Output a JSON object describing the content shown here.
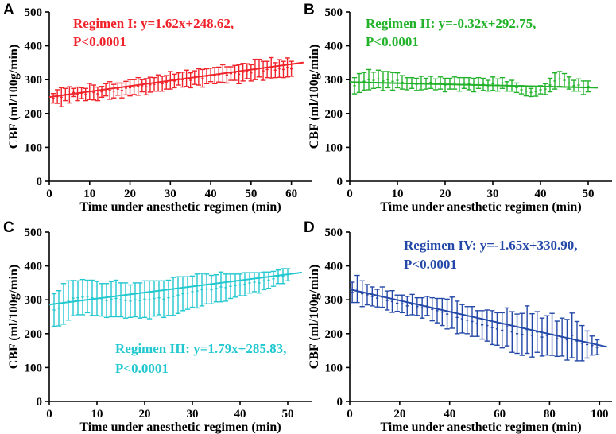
{
  "colors": {
    "A": "#f0222a",
    "B": "#22b22a",
    "C": "#22c8cf",
    "D": "#2448a8",
    "axis": "#000000"
  },
  "chart_data": [
    {
      "type": "scatter",
      "panel": "A",
      "title": "",
      "xlabel": "Time under anesthetic regimen (min)",
      "ylabel": "CBF (ml/100g/min)",
      "xlim": [
        0,
        65
      ],
      "ylim": [
        0,
        500
      ],
      "xticks": [
        0,
        10,
        20,
        30,
        40,
        50,
        60
      ],
      "yticks": [
        0,
        100,
        200,
        300,
        400,
        500
      ],
      "equation_label": "Regimen I: ",
      "equation_formula": "y=1.62x+248.62,",
      "p_value": "P<0.0001",
      "fit": {
        "slope": 1.62,
        "intercept": 248.62,
        "x_range": [
          0,
          63
        ]
      },
      "series": [
        {
          "name": "Regimen I",
          "x": [
            1,
            2,
            3,
            4,
            5,
            6,
            7,
            8,
            9,
            10,
            11,
            12,
            13,
            14,
            15,
            16,
            17,
            18,
            19,
            20,
            21,
            22,
            23,
            24,
            25,
            26,
            27,
            28,
            29,
            30,
            31,
            32,
            33,
            34,
            35,
            36,
            37,
            38,
            39,
            40,
            41,
            42,
            43,
            44,
            45,
            46,
            47,
            48,
            49,
            50,
            51,
            52,
            53,
            54,
            55,
            56,
            57,
            58,
            59,
            60
          ],
          "y": [
            245,
            250,
            248,
            256,
            255,
            262,
            258,
            260,
            256,
            265,
            262,
            258,
            264,
            270,
            268,
            266,
            272,
            268,
            275,
            276,
            278,
            280,
            282,
            279,
            285,
            286,
            290,
            288,
            292,
            298,
            296,
            302,
            300,
            304,
            298,
            306,
            308,
            304,
            310,
            314,
            312,
            315,
            318,
            314,
            318,
            320,
            316,
            322,
            325,
            320,
            330,
            334,
            326,
            330,
            335,
            328,
            333,
            330,
            336,
            332
          ],
          "err": [
            14,
            20,
            28,
            18,
            24,
            12,
            20,
            16,
            18,
            24,
            22,
            20,
            16,
            18,
            26,
            20,
            18,
            22,
            20,
            24,
            22,
            26,
            18,
            24,
            22,
            20,
            24,
            22,
            20,
            26,
            20,
            18,
            22,
            24,
            22,
            20,
            24,
            26,
            22,
            20,
            24,
            22,
            26,
            24,
            20,
            22,
            28,
            26,
            22,
            24,
            30,
            26,
            28,
            24,
            30,
            22,
            26,
            24,
            28,
            22
          ]
        }
      ]
    },
    {
      "type": "scatter",
      "panel": "B",
      "title": "",
      "xlabel": "Time under anesthetic regimen (min)",
      "ylabel": "CBF (ml/100g/min)",
      "xlim": [
        0,
        55
      ],
      "ylim": [
        0,
        500
      ],
      "xticks": [
        0,
        10,
        20,
        30,
        40,
        50
      ],
      "yticks": [
        0,
        100,
        200,
        300,
        400,
        500
      ],
      "equation_label": "Regimen II: ",
      "equation_formula": "y=-0.32x+292.75,",
      "p_value": "P<0.0001",
      "fit": {
        "slope": -0.32,
        "intercept": 292.75,
        "x_range": [
          0,
          52
        ]
      },
      "series": [
        {
          "name": "Regimen II",
          "x": [
            1,
            2,
            3,
            4,
            5,
            6,
            7,
            8,
            9,
            10,
            11,
            12,
            13,
            14,
            15,
            16,
            17,
            18,
            19,
            20,
            21,
            22,
            23,
            24,
            25,
            26,
            27,
            28,
            29,
            30,
            31,
            32,
            33,
            34,
            35,
            36,
            37,
            38,
            39,
            40,
            41,
            42,
            43,
            44,
            45,
            46,
            47,
            48,
            49,
            50
          ],
          "y": [
            282,
            290,
            295,
            300,
            298,
            302,
            296,
            300,
            295,
            298,
            292,
            288,
            290,
            286,
            290,
            288,
            292,
            286,
            290,
            284,
            288,
            290,
            286,
            290,
            288,
            284,
            290,
            286,
            282,
            288,
            284,
            290,
            280,
            282,
            276,
            270,
            266,
            262,
            265,
            270,
            272,
            284,
            296,
            302,
            298,
            290,
            282,
            284,
            276,
            280
          ],
          "err": [
            24,
            28,
            26,
            30,
            24,
            26,
            28,
            24,
            26,
            22,
            20,
            18,
            16,
            18,
            20,
            16,
            18,
            16,
            18,
            20,
            16,
            18,
            20,
            16,
            18,
            20,
            16,
            18,
            16,
            20,
            18,
            16,
            14,
            16,
            14,
            12,
            14,
            12,
            14,
            12,
            16,
            20,
            24,
            22,
            20,
            18,
            16,
            18,
            20,
            16
          ]
        }
      ]
    },
    {
      "type": "scatter",
      "panel": "C",
      "title": "",
      "xlabel": "Time under anesthetic regimen (min)",
      "ylabel": "CBF (ml/100g/min)",
      "xlim": [
        0,
        55
      ],
      "ylim": [
        0,
        500
      ],
      "xticks": [
        0,
        10,
        20,
        30,
        40,
        50
      ],
      "yticks": [
        0,
        100,
        200,
        300,
        400,
        500
      ],
      "equation_label": "Regimen III: ",
      "equation_formula": "y=1.79x+285.83,",
      "p_value": "P<0.0001",
      "fit": {
        "slope": 1.79,
        "intercept": 285.83,
        "x_range": [
          0,
          53
        ]
      },
      "series": [
        {
          "name": "Regimen III",
          "x": [
            1,
            2,
            3,
            4,
            5,
            6,
            7,
            8,
            9,
            10,
            11,
            12,
            13,
            14,
            15,
            16,
            17,
            18,
            19,
            20,
            21,
            22,
            23,
            24,
            25,
            26,
            27,
            28,
            29,
            30,
            31,
            32,
            33,
            34,
            35,
            36,
            37,
            38,
            39,
            40,
            41,
            42,
            43,
            44,
            45,
            46,
            47,
            48,
            49,
            50
          ],
          "y": [
            270,
            275,
            288,
            298,
            305,
            306,
            308,
            310,
            306,
            304,
            300,
            298,
            302,
            304,
            300,
            298,
            296,
            300,
            298,
            302,
            300,
            304,
            306,
            302,
            306,
            310,
            314,
            318,
            320,
            324,
            326,
            330,
            332,
            330,
            334,
            338,
            336,
            340,
            342,
            344,
            346,
            350,
            352,
            350,
            356,
            358,
            362,
            368,
            370,
            374
          ],
          "err": [
            48,
            52,
            60,
            58,
            52,
            50,
            52,
            48,
            52,
            50,
            48,
            50,
            52,
            54,
            50,
            52,
            48,
            50,
            52,
            54,
            56,
            52,
            50,
            54,
            52,
            56,
            54,
            50,
            48,
            46,
            50,
            48,
            44,
            42,
            40,
            44,
            40,
            36,
            34,
            32,
            34,
            30,
            28,
            30,
            26,
            24,
            22,
            20,
            22,
            18
          ]
        }
      ]
    },
    {
      "type": "scatter",
      "panel": "D",
      "title": "",
      "xlabel": "Time under anesthetic regimen (min)",
      "ylabel": "CBF (ml/100g/min)",
      "xlim": [
        0,
        105
      ],
      "ylim": [
        0,
        500
      ],
      "xticks": [
        0,
        20,
        40,
        60,
        80,
        100
      ],
      "yticks": [
        0,
        100,
        200,
        300,
        400,
        500
      ],
      "equation_label": "Regimen IV: ",
      "equation_formula": "y=-1.65x+330.90,",
      "p_value": "P<0.0001",
      "fit": {
        "slope": -1.65,
        "intercept": 330.9,
        "x_range": [
          0,
          103
        ]
      },
      "series": [
        {
          "name": "Regimen IV",
          "x": [
            1,
            3,
            5,
            7,
            9,
            11,
            13,
            15,
            17,
            19,
            21,
            23,
            25,
            27,
            29,
            31,
            33,
            35,
            37,
            39,
            41,
            43,
            45,
            47,
            49,
            51,
            53,
            55,
            57,
            59,
            61,
            63,
            65,
            67,
            69,
            71,
            73,
            75,
            77,
            79,
            81,
            83,
            85,
            87,
            89,
            91,
            93,
            95,
            97,
            99
          ],
          "y": [
            322,
            332,
            318,
            315,
            310,
            305,
            308,
            298,
            295,
            290,
            288,
            282,
            286,
            280,
            276,
            282,
            272,
            268,
            264,
            258,
            262,
            248,
            244,
            240,
            236,
            230,
            226,
            224,
            218,
            214,
            210,
            220,
            205,
            200,
            198,
            212,
            195,
            205,
            190,
            195,
            198,
            185,
            190,
            182,
            195,
            178,
            172,
            168,
            165,
            160
          ],
          "err": [
            30,
            40,
            38,
            30,
            28,
            26,
            30,
            28,
            32,
            24,
            26,
            28,
            30,
            26,
            30,
            28,
            34,
            36,
            40,
            44,
            46,
            48,
            42,
            40,
            44,
            38,
            42,
            46,
            50,
            48,
            52,
            56,
            60,
            58,
            62,
            70,
            64,
            60,
            56,
            58,
            62,
            52,
            56,
            60,
            66,
            58,
            52,
            40,
            28,
            22
          ]
        }
      ]
    }
  ]
}
